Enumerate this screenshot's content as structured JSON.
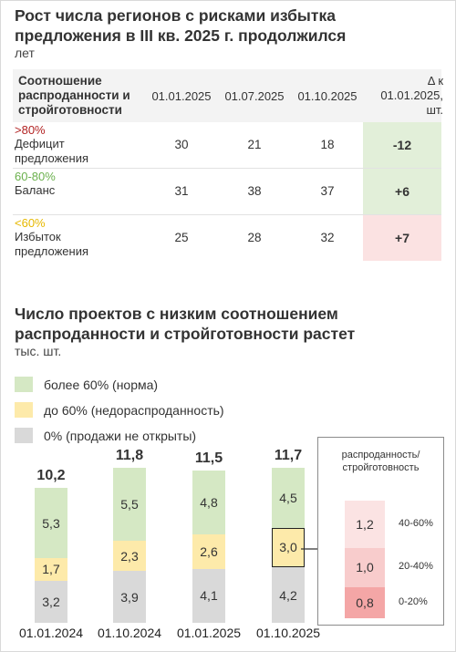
{
  "titles": {
    "top_title_line1": "Рост числа регионов с рисками избытка",
    "top_title_line2": "предложения в III кв. 2025 г. продолжился",
    "top_unit": "лет",
    "bottom_title_line1": "Число проектов с низким соотношением",
    "bottom_title_line2": "распроданности и стройготовности растет",
    "bottom_unit": "тыс. шт."
  },
  "table": {
    "header_first_line1": "Соотношение",
    "header_first_line2": "распроданности и",
    "header_first_line3": "стройготовности",
    "dates": [
      "01.01.2025",
      "01.07.2025",
      "01.10.2025"
    ],
    "delta_line1": "Δ к",
    "delta_line2": "01.01.2025,",
    "delta_line3": "шт.",
    "rows": [
      {
        "range": ">80%",
        "name_line1": "Дефицит",
        "name_line2": "предложения",
        "values": [
          "30",
          "21",
          "18"
        ],
        "delta": "-12",
        "range_color": "#b22222",
        "delta_bg": "#e2efd9"
      },
      {
        "range": "60-80%",
        "name_line1": "Баланс",
        "name_line2": "",
        "values": [
          "31",
          "38",
          "37"
        ],
        "delta": "+6",
        "range_color": "#6ab04c",
        "delta_bg": "#e2efd9"
      },
      {
        "range": "<60%",
        "name_line1": "Избыток",
        "name_line2": "предложения",
        "values": [
          "25",
          "28",
          "32"
        ],
        "delta": "+7",
        "range_color": "#e6b800",
        "delta_bg": "#fbe2e2"
      }
    ]
  },
  "legend": [
    {
      "label": "более 60% (норма)",
      "color": "#d5e8c4"
    },
    {
      "label": "до 60% (недораспроданность)",
      "color": "#fdeaaa"
    },
    {
      "label": "0% (продажи не открыты)",
      "color": "#d9d9d9"
    }
  ],
  "chart_data": {
    "type": "bar",
    "stacked": true,
    "categories": [
      "01.01.2024",
      "01.10.2024",
      "01.01.2025",
      "01.10.2025"
    ],
    "totals": [
      "10,2",
      "11,8",
      "11,5",
      "11,7"
    ],
    "series": [
      {
        "name": "0% (продажи не открыты)",
        "values": [
          3.2,
          3.9,
          4.1,
          4.2
        ],
        "labels": [
          "3,2",
          "3,9",
          "4,1",
          "4,2"
        ],
        "color": "#d9d9d9"
      },
      {
        "name": "до 60% (недораспроданность)",
        "values": [
          1.7,
          2.3,
          2.6,
          3.0
        ],
        "labels": [
          "1,7",
          "2,3",
          "2,6",
          "3,0"
        ],
        "color": "#fdeaaa"
      },
      {
        "name": "более 60% (норма)",
        "values": [
          5.3,
          5.5,
          4.8,
          4.5
        ],
        "labels": [
          "5,3",
          "5,5",
          "4,8",
          "4,5"
        ],
        "color": "#d5e8c4"
      }
    ],
    "inset": {
      "title_line1": "распроданность/",
      "title_line2": "стройготовность",
      "breakdown_of": "до 60% (недораспроданность), 01.10.2025",
      "segments": [
        {
          "range": "0-20%",
          "value": 0.8,
          "label": "0,8",
          "color": "#f4a6a6"
        },
        {
          "range": "20-40%",
          "value": 1.0,
          "label": "1,0",
          "color": "#f8cccc"
        },
        {
          "range": "40-60%",
          "value": 1.2,
          "label": "1,2",
          "color": "#fbe3e3"
        }
      ]
    }
  }
}
